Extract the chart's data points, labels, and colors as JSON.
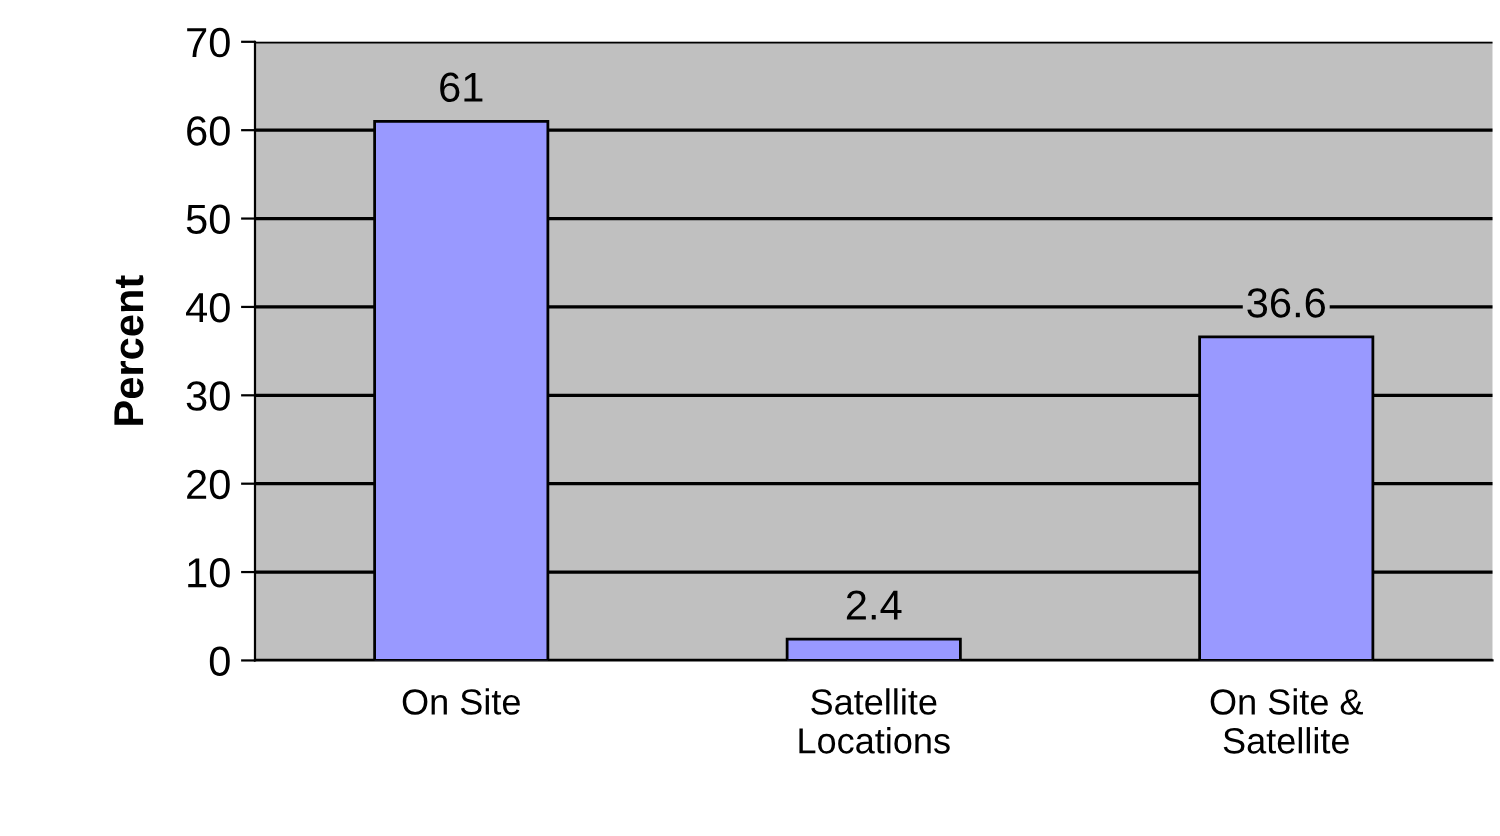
{
  "chart_data": {
    "type": "bar",
    "ylabel": "Percent",
    "categories": [
      "On Site",
      "Satellite\nLocations",
      "On Site &\nSatellite"
    ],
    "values": [
      61,
      2.4,
      36.6
    ],
    "color": "#9999ff",
    "ylim": [
      0,
      70
    ],
    "yticks": [
      0,
      10,
      20,
      30,
      40,
      50,
      60,
      70
    ],
    "grid": "y",
    "data_labels": true
  }
}
